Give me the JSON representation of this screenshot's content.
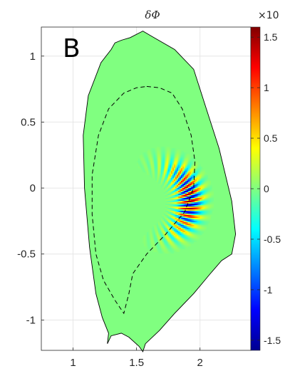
{
  "chart_data": {
    "type": "heatmap",
    "title": "δΦ",
    "panel_label": "B",
    "xlabel": "",
    "ylabel": "",
    "xlim": [
      0.75,
      2.4
    ],
    "ylim": [
      -1.23,
      1.22
    ],
    "x_ticks": [
      1,
      1.5,
      2
    ],
    "x_tick_labels": [
      "1",
      "1.5",
      "2"
    ],
    "y_ticks": [
      1,
      0.5,
      0,
      -0.5,
      -1
    ],
    "y_tick_labels": [
      "1",
      "0.5",
      "0",
      "-0.5",
      "-1"
    ],
    "grid": true,
    "colorbar": {
      "colormap": "jet",
      "range": [
        -1.6,
        1.6
      ],
      "ticks": [
        1.5,
        1,
        0.5,
        0,
        -0.5,
        -1,
        -1.5
      ],
      "tick_labels": [
        "1.5",
        "1",
        "0.5",
        "0",
        "-0.5",
        "-1",
        "-1.5"
      ],
      "exponent_label": "×10"
    },
    "separatrix_style": "dashed",
    "wall_outline_R": [
      1.55,
      1.62,
      1.8,
      1.95,
      2.05,
      2.15,
      2.25,
      2.28,
      2.25,
      2.17,
      2.08,
      1.95,
      1.8,
      1.68,
      1.57,
      1.55,
      1.52,
      1.44,
      1.38,
      1.3,
      1.27,
      1.28,
      1.23,
      1.18,
      1.13,
      1.09,
      1.08,
      1.12,
      1.22,
      1.3,
      1.33,
      1.38,
      1.45,
      1.55
    ],
    "wall_outline_Z": [
      1.19,
      1.15,
      1.05,
      0.9,
      0.6,
      0.3,
      -0.1,
      -0.35,
      -0.5,
      -0.55,
      -0.65,
      -0.8,
      -0.95,
      -1.08,
      -1.18,
      -1.24,
      -1.2,
      -1.13,
      -1.1,
      -1.12,
      -1.18,
      -1.1,
      -0.98,
      -0.8,
      -0.45,
      0.0,
      0.4,
      0.7,
      0.95,
      1.05,
      1.1,
      1.12,
      1.14,
      1.19
    ],
    "separatrix_R": [
      1.58,
      1.68,
      1.78,
      1.86,
      1.93,
      1.96,
      1.95,
      1.88,
      1.73,
      1.58,
      1.47,
      1.44,
      1.4,
      1.33,
      1.24,
      1.18,
      1.15,
      1.15,
      1.2,
      1.28,
      1.4,
      1.5,
      1.58
    ],
    "separatrix_Z": [
      0.77,
      0.76,
      0.72,
      0.6,
      0.4,
      0.2,
      0.0,
      -0.18,
      -0.35,
      -0.5,
      -0.65,
      -0.8,
      -0.95,
      -0.85,
      -0.7,
      -0.5,
      -0.2,
      0.1,
      0.4,
      0.6,
      0.72,
      0.76,
      0.77
    ],
    "mode": {
      "center_R": 1.62,
      "center_Z": -0.1,
      "peak_R": 1.92,
      "peak_Z": -0.08,
      "peak_amplitude": 1.6,
      "poloidal_wavenumber": 32,
      "background_value": 0
    }
  }
}
